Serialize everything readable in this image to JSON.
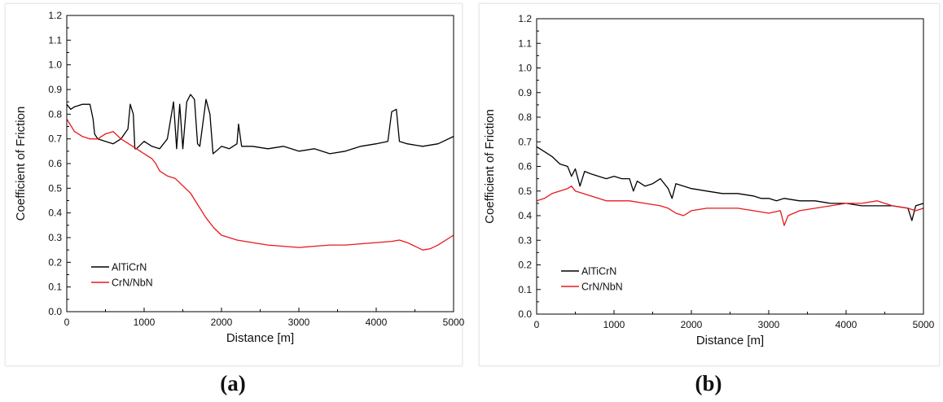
{
  "colors": {
    "AlTiCrN": "#000000",
    "CrN/NbN": "#e8181c"
  },
  "chart_data": [
    {
      "type": "line",
      "caption": "(a)",
      "xlabel": "Distance [m]",
      "ylabel": "Coefficient of Friction",
      "xlim": [
        0,
        5000
      ],
      "ylim": [
        0,
        1.2
      ],
      "xticks": [
        0,
        1000,
        2000,
        3000,
        4000,
        5000
      ],
      "yticks": [
        0.0,
        0.1,
        0.2,
        0.3,
        0.4,
        0.5,
        0.6,
        0.7,
        0.8,
        0.9,
        1.0,
        1.1,
        1.2
      ],
      "legend": "bottom-left",
      "series": [
        {
          "name": "AlTiCrN",
          "x": [
            0,
            50,
            100,
            200,
            300,
            340,
            360,
            400,
            500,
            600,
            700,
            790,
            820,
            860,
            880,
            900,
            1000,
            1100,
            1200,
            1300,
            1380,
            1420,
            1460,
            1500,
            1550,
            1600,
            1650,
            1690,
            1720,
            1800,
            1850,
            1890,
            1930,
            2000,
            2100,
            2200,
            2220,
            2260,
            2400,
            2600,
            2800,
            3000,
            3200,
            3400,
            3600,
            3800,
            4000,
            4150,
            4200,
            4260,
            4300,
            4400,
            4600,
            4800,
            5000
          ],
          "y": [
            0.84,
            0.82,
            0.83,
            0.84,
            0.84,
            0.78,
            0.72,
            0.7,
            0.69,
            0.68,
            0.7,
            0.74,
            0.84,
            0.8,
            0.66,
            0.66,
            0.69,
            0.67,
            0.66,
            0.7,
            0.85,
            0.66,
            0.84,
            0.66,
            0.85,
            0.88,
            0.86,
            0.68,
            0.67,
            0.86,
            0.8,
            0.64,
            0.65,
            0.67,
            0.66,
            0.68,
            0.76,
            0.67,
            0.67,
            0.66,
            0.67,
            0.65,
            0.66,
            0.64,
            0.65,
            0.67,
            0.68,
            0.69,
            0.81,
            0.82,
            0.69,
            0.68,
            0.67,
            0.68,
            0.71
          ]
        },
        {
          "name": "CrN/NbN",
          "x": [
            0,
            100,
            200,
            300,
            400,
            500,
            600,
            700,
            800,
            900,
            1000,
            1100,
            1150,
            1200,
            1300,
            1400,
            1500,
            1600,
            1700,
            1800,
            1900,
            2000,
            2200,
            2400,
            2600,
            2800,
            3000,
            3200,
            3400,
            3600,
            3800,
            4000,
            4200,
            4300,
            4400,
            4500,
            4600,
            4700,
            4800,
            4900,
            5000
          ],
          "y": [
            0.78,
            0.73,
            0.71,
            0.7,
            0.7,
            0.72,
            0.73,
            0.7,
            0.68,
            0.66,
            0.64,
            0.62,
            0.6,
            0.57,
            0.55,
            0.54,
            0.51,
            0.48,
            0.43,
            0.38,
            0.34,
            0.31,
            0.29,
            0.28,
            0.27,
            0.265,
            0.26,
            0.265,
            0.27,
            0.27,
            0.275,
            0.28,
            0.285,
            0.29,
            0.28,
            0.265,
            0.25,
            0.255,
            0.27,
            0.29,
            0.31
          ]
        }
      ]
    },
    {
      "type": "line",
      "caption": "(b)",
      "xlabel": "Distance [m]",
      "ylabel": "Coefficient of Friction",
      "xlim": [
        0,
        5000
      ],
      "ylim": [
        0,
        1.2
      ],
      "xticks": [
        0,
        1000,
        2000,
        3000,
        4000,
        5000
      ],
      "yticks": [
        0.0,
        0.1,
        0.2,
        0.3,
        0.4,
        0.5,
        0.6,
        0.7,
        0.8,
        0.9,
        1.0,
        1.1,
        1.2
      ],
      "legend": "bottom-left",
      "series": [
        {
          "name": "AlTiCrN",
          "x": [
            0,
            50,
            100,
            200,
            300,
            400,
            450,
            500,
            560,
            620,
            700,
            800,
            900,
            1000,
            1100,
            1200,
            1250,
            1300,
            1400,
            1500,
            1600,
            1700,
            1750,
            1800,
            1900,
            2000,
            2200,
            2400,
            2600,
            2800,
            2900,
            3000,
            3100,
            3200,
            3400,
            3600,
            3800,
            4000,
            4200,
            4400,
            4600,
            4800,
            4850,
            4900,
            5000
          ],
          "y": [
            0.68,
            0.67,
            0.66,
            0.64,
            0.61,
            0.6,
            0.56,
            0.59,
            0.52,
            0.58,
            0.57,
            0.56,
            0.55,
            0.56,
            0.55,
            0.55,
            0.5,
            0.54,
            0.52,
            0.53,
            0.55,
            0.51,
            0.47,
            0.53,
            0.52,
            0.51,
            0.5,
            0.49,
            0.49,
            0.48,
            0.47,
            0.47,
            0.46,
            0.47,
            0.46,
            0.46,
            0.45,
            0.45,
            0.44,
            0.44,
            0.44,
            0.43,
            0.38,
            0.44,
            0.45
          ]
        },
        {
          "name": "CrN/NbN",
          "x": [
            0,
            100,
            200,
            300,
            400,
            450,
            500,
            600,
            700,
            800,
            900,
            1000,
            1200,
            1400,
            1600,
            1700,
            1800,
            1900,
            2000,
            2200,
            2400,
            2600,
            2800,
            3000,
            3150,
            3200,
            3250,
            3400,
            3600,
            3800,
            4000,
            4200,
            4400,
            4500,
            4600,
            4800,
            4900,
            5000
          ],
          "y": [
            0.46,
            0.47,
            0.49,
            0.5,
            0.51,
            0.52,
            0.5,
            0.49,
            0.48,
            0.47,
            0.46,
            0.46,
            0.46,
            0.45,
            0.44,
            0.43,
            0.41,
            0.4,
            0.42,
            0.43,
            0.43,
            0.43,
            0.42,
            0.41,
            0.42,
            0.36,
            0.4,
            0.42,
            0.43,
            0.44,
            0.45,
            0.45,
            0.46,
            0.45,
            0.44,
            0.43,
            0.42,
            0.43
          ]
        }
      ]
    }
  ]
}
